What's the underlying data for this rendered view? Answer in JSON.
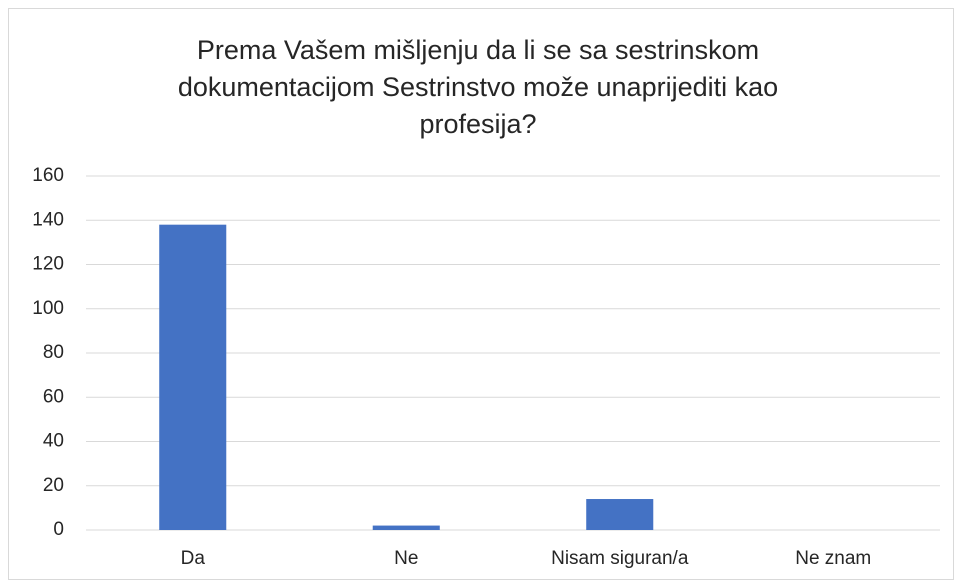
{
  "chart_data": {
    "type": "bar",
    "title": "Prema Vašem mišljenju da li se sa sestrinskom dokumentacijom Sestrinstvo može unaprijediti kao profesija?",
    "categories": [
      "Da",
      "Ne",
      "Nisam siguran/a",
      "Ne znam"
    ],
    "values": [
      138,
      2,
      14,
      0
    ],
    "color": "#4472c4",
    "ylim": [
      0,
      160
    ],
    "yticks": [
      0,
      20,
      40,
      60,
      80,
      100,
      120,
      140,
      160
    ],
    "grid": true
  }
}
